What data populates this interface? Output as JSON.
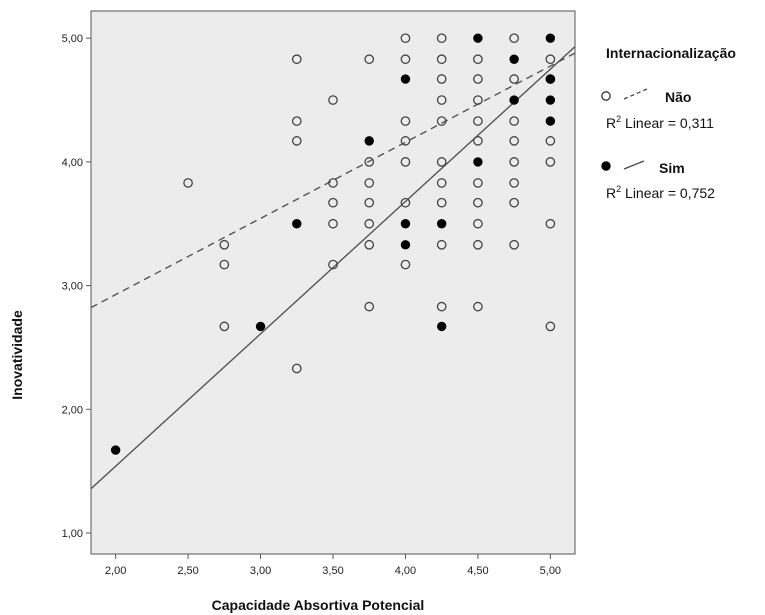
{
  "chart_data": {
    "type": "scatter",
    "title": "",
    "xlabel": "Capacidade  Absortiva Potencial",
    "ylabel": "Inovatividade",
    "xlim": [
      1.83,
      5.17
    ],
    "ylim": [
      0.83,
      5.22
    ],
    "xticks": [
      2.0,
      2.5,
      3.0,
      3.5,
      4.0,
      4.5,
      5.0
    ],
    "yticks": [
      1.0,
      2.0,
      3.0,
      4.0,
      5.0
    ],
    "xtick_labels": [
      "2,00",
      "2,50",
      "3,00",
      "3,50",
      "4,00",
      "4,50",
      "5,00"
    ],
    "ytick_labels": [
      "1,00",
      "2,00",
      "3,00",
      "4,00",
      "5,00"
    ],
    "grid": false,
    "background": "#ececec",
    "legend": {
      "placement": "right",
      "title": "Internacionalização",
      "items": [
        {
          "name": "Não",
          "r2_prefix": "R",
          "r2_sup": "2",
          "r2_text": " Linear = 0,311"
        },
        {
          "name": "Sim",
          "r2_prefix": "R",
          "r2_sup": "2",
          "r2_text": " Linear = 0,752"
        }
      ]
    },
    "series": [
      {
        "name": "Não",
        "marker": "hollow-circle",
        "fit": {
          "style": "dashed",
          "slope": 0.616,
          "intercept": 1.695
        },
        "points": [
          [
            2.5,
            3.83
          ],
          [
            2.75,
            3.33
          ],
          [
            2.75,
            3.17
          ],
          [
            2.75,
            2.67
          ],
          [
            3.25,
            4.83
          ],
          [
            3.25,
            4.33
          ],
          [
            3.25,
            4.17
          ],
          [
            3.25,
            2.33
          ],
          [
            3.5,
            4.5
          ],
          [
            3.5,
            3.83
          ],
          [
            3.5,
            3.67
          ],
          [
            3.5,
            3.5
          ],
          [
            3.5,
            3.17
          ],
          [
            3.75,
            4.83
          ],
          [
            3.75,
            4.0
          ],
          [
            3.75,
            3.83
          ],
          [
            3.75,
            3.67
          ],
          [
            3.75,
            3.5
          ],
          [
            3.75,
            3.33
          ],
          [
            3.75,
            2.83
          ],
          [
            4.0,
            5.0
          ],
          [
            4.0,
            4.83
          ],
          [
            4.0,
            4.33
          ],
          [
            4.0,
            4.17
          ],
          [
            4.0,
            4.0
          ],
          [
            4.0,
            3.67
          ],
          [
            4.0,
            3.17
          ],
          [
            4.25,
            5.0
          ],
          [
            4.25,
            4.83
          ],
          [
            4.25,
            4.67
          ],
          [
            4.25,
            4.5
          ],
          [
            4.25,
            4.33
          ],
          [
            4.25,
            4.0
          ],
          [
            4.25,
            3.83
          ],
          [
            4.25,
            3.67
          ],
          [
            4.25,
            3.33
          ],
          [
            4.25,
            2.83
          ],
          [
            4.5,
            4.83
          ],
          [
            4.5,
            4.67
          ],
          [
            4.5,
            4.5
          ],
          [
            4.5,
            4.33
          ],
          [
            4.5,
            4.17
          ],
          [
            4.5,
            3.83
          ],
          [
            4.5,
            3.67
          ],
          [
            4.5,
            3.5
          ],
          [
            4.5,
            3.33
          ],
          [
            4.5,
            2.83
          ],
          [
            4.75,
            5.0
          ],
          [
            4.75,
            4.67
          ],
          [
            4.75,
            4.33
          ],
          [
            4.75,
            4.17
          ],
          [
            4.75,
            4.0
          ],
          [
            4.75,
            3.83
          ],
          [
            4.75,
            3.67
          ],
          [
            4.75,
            3.33
          ],
          [
            5.0,
            4.83
          ],
          [
            5.0,
            4.67
          ],
          [
            5.0,
            4.17
          ],
          [
            5.0,
            4.0
          ],
          [
            5.0,
            3.5
          ],
          [
            5.0,
            2.67
          ]
        ]
      },
      {
        "name": "Sim",
        "marker": "filled-circle",
        "fit": {
          "style": "solid",
          "slope": 1.07,
          "intercept": -0.6
        },
        "points": [
          [
            2.0,
            1.67
          ],
          [
            3.0,
            2.67
          ],
          [
            3.25,
            3.5
          ],
          [
            3.75,
            4.17
          ],
          [
            4.0,
            4.67
          ],
          [
            4.0,
            3.5
          ],
          [
            4.0,
            3.33
          ],
          [
            4.25,
            3.5
          ],
          [
            4.25,
            2.67
          ],
          [
            4.5,
            5.0
          ],
          [
            4.5,
            4.0
          ],
          [
            4.75,
            4.83
          ],
          [
            4.75,
            4.5
          ],
          [
            5.0,
            5.0
          ],
          [
            5.0,
            4.67
          ],
          [
            5.0,
            4.5
          ],
          [
            5.0,
            4.33
          ]
        ]
      }
    ]
  }
}
